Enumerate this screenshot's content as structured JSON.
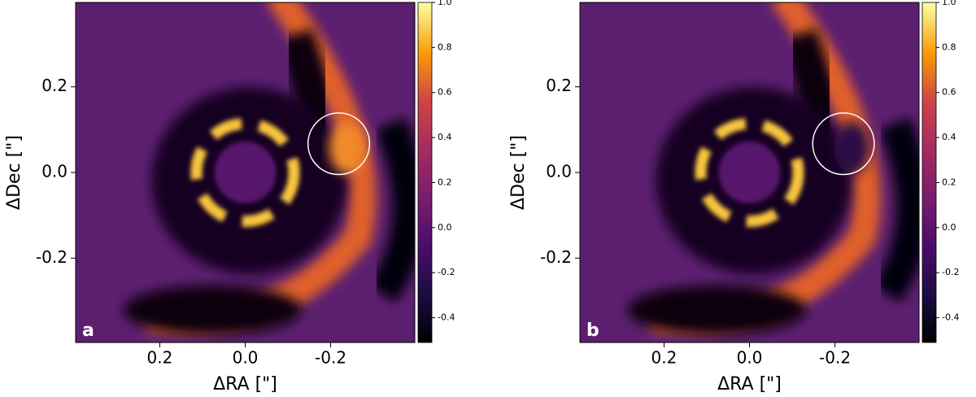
{
  "chart_data": [
    {
      "type": "heatmap",
      "panel_label": "a",
      "xlabel": "ΔRA [\"]",
      "ylabel": "ΔDec [\"]",
      "xlim": [
        0.397,
        -0.397
      ],
      "ylim": [
        -0.397,
        0.397
      ],
      "xticks": [
        0.2,
        {
          "value": 0,
          "label": "0.0"
        },
        -0.2
      ],
      "yticks": [
        -0.2,
        {
          "value": 0,
          "label": "0.0"
        },
        0.2
      ],
      "colorbar": {
        "clim": [
          -0.51,
          1.0
        ],
        "ticks": [
          -0.4,
          -0.2,
          {
            "value": 0,
            "label": "0.0"
          },
          0.2,
          0.4,
          0.6,
          0.8,
          {
            "value": 1,
            "label": "1.0"
          }
        ]
      },
      "circle": {
        "x": -0.219,
        "y": 0.067,
        "r": 0.072,
        "color": "#ffffff"
      }
    },
    {
      "type": "heatmap",
      "panel_label": "b",
      "xlabel": "ΔRA [\"]",
      "ylabel": "ΔDec [\"]",
      "xlim": [
        0.397,
        -0.397
      ],
      "ylim": [
        -0.397,
        0.397
      ],
      "xticks": [
        0.2,
        {
          "value": 0,
          "label": "0.0"
        },
        -0.2
      ],
      "yticks": [
        -0.2,
        {
          "value": 0,
          "label": "0.0"
        },
        0.2
      ],
      "colorbar": {
        "clim": [
          -0.51,
          1.0
        ],
        "ticks": [
          -0.4,
          -0.2,
          {
            "value": 0,
            "label": "0.0"
          },
          0.2,
          0.4,
          0.6,
          0.8,
          {
            "value": 1,
            "label": "1.0"
          }
        ]
      },
      "circle": {
        "x": -0.22,
        "y": 0.067,
        "r": 0.072,
        "color": "#ffffff"
      }
    }
  ]
}
